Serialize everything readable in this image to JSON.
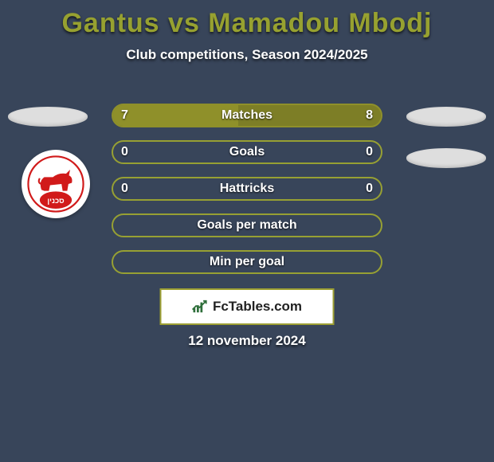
{
  "title": "Gantus vs Mamadou Mbodj",
  "subtitle": "Club competitions, Season 2024/2025",
  "date": "12 november 2024",
  "footer_site": "FcTables.com",
  "colors": {
    "background": "#38455a",
    "title": "#97a130",
    "row_fill": "#8f902a",
    "row_border_full": "#8f902a",
    "row_border_empty": "#97a033",
    "footer_border": "#9c9f33",
    "avatar_bg": "#dedede",
    "logo_red": "#d11a1a",
    "chart_icon": "#2e6e3a"
  },
  "rows": [
    {
      "label": "Matches",
      "left": "7",
      "right": "8",
      "fill_pct": 46.7,
      "filled": true
    },
    {
      "label": "Goals",
      "left": "0",
      "right": "0",
      "fill_pct": 0,
      "filled": false
    },
    {
      "label": "Hattricks",
      "left": "0",
      "right": "0",
      "fill_pct": 0,
      "filled": false
    },
    {
      "label": "Goals per match",
      "left": "",
      "right": "",
      "fill_pct": 0,
      "filled": false
    },
    {
      "label": "Min per goal",
      "left": "",
      "right": "",
      "fill_pct": 0,
      "filled": false
    }
  ],
  "avatars": {
    "left": true,
    "right": true,
    "right2": true
  },
  "club_logo": {
    "shape": "goat-on-ball",
    "text_script": "סכנין"
  }
}
